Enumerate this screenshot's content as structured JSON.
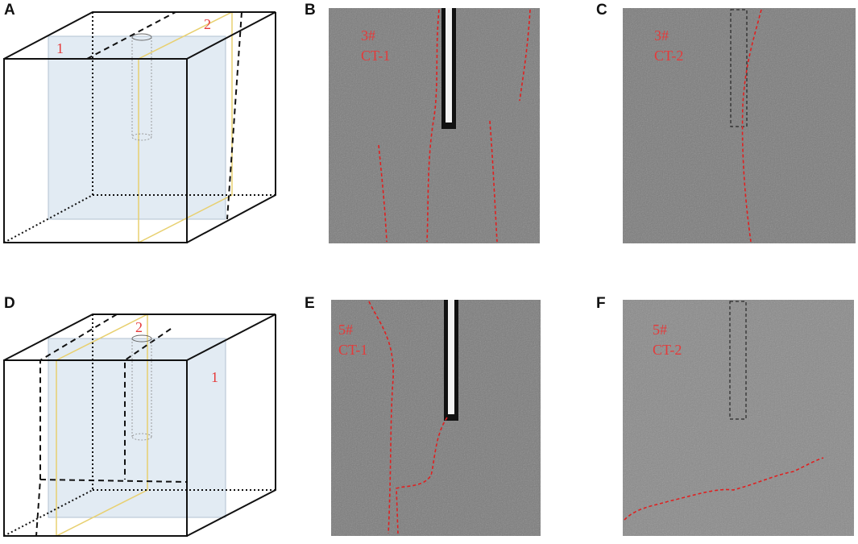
{
  "panels": [
    {
      "label": "A",
      "markers": [
        "1",
        "2"
      ]
    },
    {
      "label": "B",
      "sample": "3#",
      "scan": "CT-1"
    },
    {
      "label": "C",
      "sample": "3#",
      "scan": "CT-2"
    },
    {
      "label": "D",
      "markers": [
        "1",
        "2"
      ]
    },
    {
      "label": "E",
      "sample": "5#",
      "scan": "CT-1"
    },
    {
      "label": "F",
      "sample": "5#",
      "scan": "CT-2"
    }
  ]
}
